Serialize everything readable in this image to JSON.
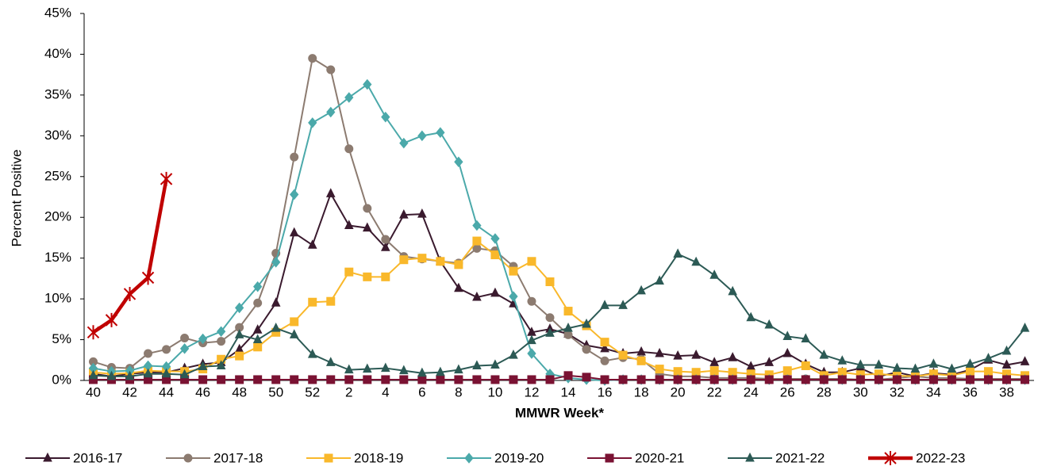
{
  "chart_data": {
    "type": "line",
    "x_label": "MMWR Week*",
    "y_label": "Percent Positive",
    "categories": [
      "40",
      null,
      "42",
      null,
      "44",
      null,
      "46",
      null,
      "48",
      null,
      "50",
      null,
      "52",
      null,
      "2",
      null,
      "4",
      null,
      "6",
      null,
      "8",
      null,
      "10",
      null,
      "12",
      null,
      "14",
      null,
      "16",
      null,
      "18",
      null,
      "20",
      null,
      "22",
      null,
      "24",
      null,
      "26",
      null,
      "28",
      null,
      "30",
      null,
      "32",
      null,
      "34",
      null,
      "36",
      null,
      "38",
      null
    ],
    "ylim": [
      0,
      45
    ],
    "yticks": [
      {
        "value": 0,
        "label": "0%"
      },
      {
        "value": 5,
        "label": "5%"
      },
      {
        "value": 10,
        "label": "10%"
      },
      {
        "value": 15,
        "label": "15%"
      },
      {
        "value": 20,
        "label": "20%"
      },
      {
        "value": 25,
        "label": "25%"
      },
      {
        "value": 30,
        "label": "30%"
      },
      {
        "value": 35,
        "label": "35%"
      },
      {
        "value": 40,
        "label": "40%"
      },
      {
        "value": 45,
        "label": "45%"
      }
    ],
    "grid": false,
    "legend": "bottom",
    "series": [
      {
        "name": "2016-17",
        "color": "#3a1a2e",
        "marker": "triangle",
        "line_width": 2,
        "values": [
          0.8,
          0.5,
          0.8,
          1.0,
          1.0,
          1.5,
          2.0,
          2.2,
          3.8,
          6.2,
          9.5,
          18.1,
          16.6,
          22.9,
          19.0,
          18.7,
          16.3,
          20.3,
          20.4,
          14.6,
          11.3,
          10.2,
          10.7,
          9.4,
          5.9,
          6.3,
          5.7,
          4.3,
          3.9,
          3.3,
          3.5,
          3.3,
          3.0,
          3.1,
          2.2,
          2.8,
          1.7,
          2.2,
          3.3,
          2.0,
          1.0,
          1.0,
          1.5,
          0.5,
          1.0,
          0.5,
          0.9,
          0.7,
          1.3,
          2.5,
          1.9,
          2.3
        ]
      },
      {
        "name": "2017-18",
        "color": "#8c7b70",
        "marker": "circle",
        "line_width": 2,
        "values": [
          2.3,
          1.6,
          1.5,
          3.3,
          3.8,
          5.2,
          4.6,
          4.8,
          6.5,
          9.5,
          15.6,
          27.4,
          39.5,
          38.1,
          28.4,
          21.1,
          17.3,
          15.2,
          14.9,
          14.6,
          14.4,
          16.2,
          15.9,
          14.0,
          9.7,
          7.7,
          5.6,
          3.8,
          2.4,
          2.8,
          2.6,
          0.8,
          0.5,
          0.5,
          0.3,
          0.3,
          0.3,
          0.2,
          0.2,
          0.2,
          0.2,
          0.2,
          0.1,
          0.1,
          0.3,
          0.5,
          0.3,
          0.3,
          0.2,
          0.2,
          0.2,
          0.2
        ]
      },
      {
        "name": "2018-19",
        "color": "#f9b82b",
        "marker": "square",
        "line_width": 2,
        "values": [
          1.0,
          0.8,
          0.9,
          1.2,
          1.1,
          1.1,
          1.4,
          2.6,
          3.0,
          4.1,
          5.9,
          7.2,
          9.6,
          9.7,
          13.3,
          12.7,
          12.7,
          14.8,
          15.0,
          14.6,
          14.2,
          17.1,
          15.4,
          13.4,
          14.6,
          12.1,
          8.5,
          6.7,
          4.7,
          3.1,
          2.4,
          1.4,
          1.1,
          1.0,
          1.2,
          1.0,
          0.8,
          0.7,
          1.2,
          1.8,
          0.6,
          1.0,
          0.7,
          0.8,
          0.6,
          0.5,
          0.8,
          0.6,
          1.1,
          1.1,
          0.8,
          0.6
        ]
      },
      {
        "name": "2019-20",
        "color": "#4ba9aa",
        "marker": "diamond",
        "line_width": 2,
        "values": [
          1.5,
          1.1,
          1.2,
          1.8,
          1.7,
          3.9,
          5.1,
          6.0,
          8.9,
          11.5,
          14.5,
          22.8,
          31.6,
          32.9,
          34.7,
          36.3,
          32.3,
          29.1,
          30.0,
          30.4,
          26.8,
          19.0,
          17.4,
          10.3,
          3.3,
          0.8,
          0.3,
          0.1,
          0.0,
          0.1,
          0.1,
          0.1,
          0.1,
          0.1,
          0.1,
          0.1,
          0.1,
          0.1,
          0.1,
          0.1,
          0.1,
          0.1,
          0.1,
          0.1,
          0.1,
          0.1,
          0.1,
          0.1,
          0.1,
          0.1,
          0.1,
          0.1
        ]
      },
      {
        "name": "2020-21",
        "color": "#7a1233",
        "marker": "square",
        "line_width": 2,
        "values": [
          0.1,
          0.1,
          0.1,
          0.1,
          0.1,
          0.1,
          0.1,
          0.1,
          0.1,
          0.1,
          0.1,
          0.1,
          0.1,
          0.1,
          0.1,
          0.1,
          0.1,
          0.1,
          0.1,
          0.1,
          0.1,
          0.1,
          0.1,
          0.1,
          0.1,
          0.1,
          0.6,
          0.4,
          0.1,
          0.1,
          0.1,
          0.1,
          0.1,
          0.1,
          0.1,
          0.1,
          0.1,
          0.1,
          0.1,
          0.1,
          0.1,
          0.1,
          0.1,
          0.1,
          0.1,
          0.1,
          0.1,
          0.1,
          0.1,
          0.1,
          0.1,
          0.1
        ]
      },
      {
        "name": "2021-22",
        "color": "#2c5a55",
        "marker": "triangle",
        "line_width": 2,
        "values": [
          0.6,
          0.5,
          0.5,
          0.8,
          0.8,
          0.7,
          1.7,
          1.8,
          5.6,
          5.0,
          6.4,
          5.6,
          3.2,
          2.2,
          1.3,
          1.4,
          1.5,
          1.2,
          0.9,
          1.0,
          1.3,
          1.8,
          1.9,
          3.1,
          4.9,
          5.8,
          6.4,
          6.9,
          9.2,
          9.2,
          11.0,
          12.2,
          15.5,
          14.5,
          12.9,
          10.9,
          7.7,
          6.8,
          5.4,
          5.1,
          3.1,
          2.4,
          1.9,
          1.9,
          1.5,
          1.4,
          2.0,
          1.4,
          2.0,
          2.7,
          3.6,
          6.4
        ]
      },
      {
        "name": "2022-23",
        "color": "#c00000",
        "marker": "star",
        "line_width": 4.5,
        "values": [
          5.9,
          7.4,
          10.6,
          12.6,
          24.7,
          null,
          null,
          null,
          null,
          null,
          null,
          null,
          null,
          null,
          null,
          null,
          null,
          null,
          null,
          null,
          null,
          null,
          null,
          null,
          null,
          null,
          null,
          null,
          null,
          null,
          null,
          null,
          null,
          null,
          null,
          null,
          null,
          null,
          null,
          null,
          null,
          null,
          null,
          null,
          null,
          null,
          null,
          null,
          null,
          null,
          null,
          null
        ]
      }
    ]
  }
}
